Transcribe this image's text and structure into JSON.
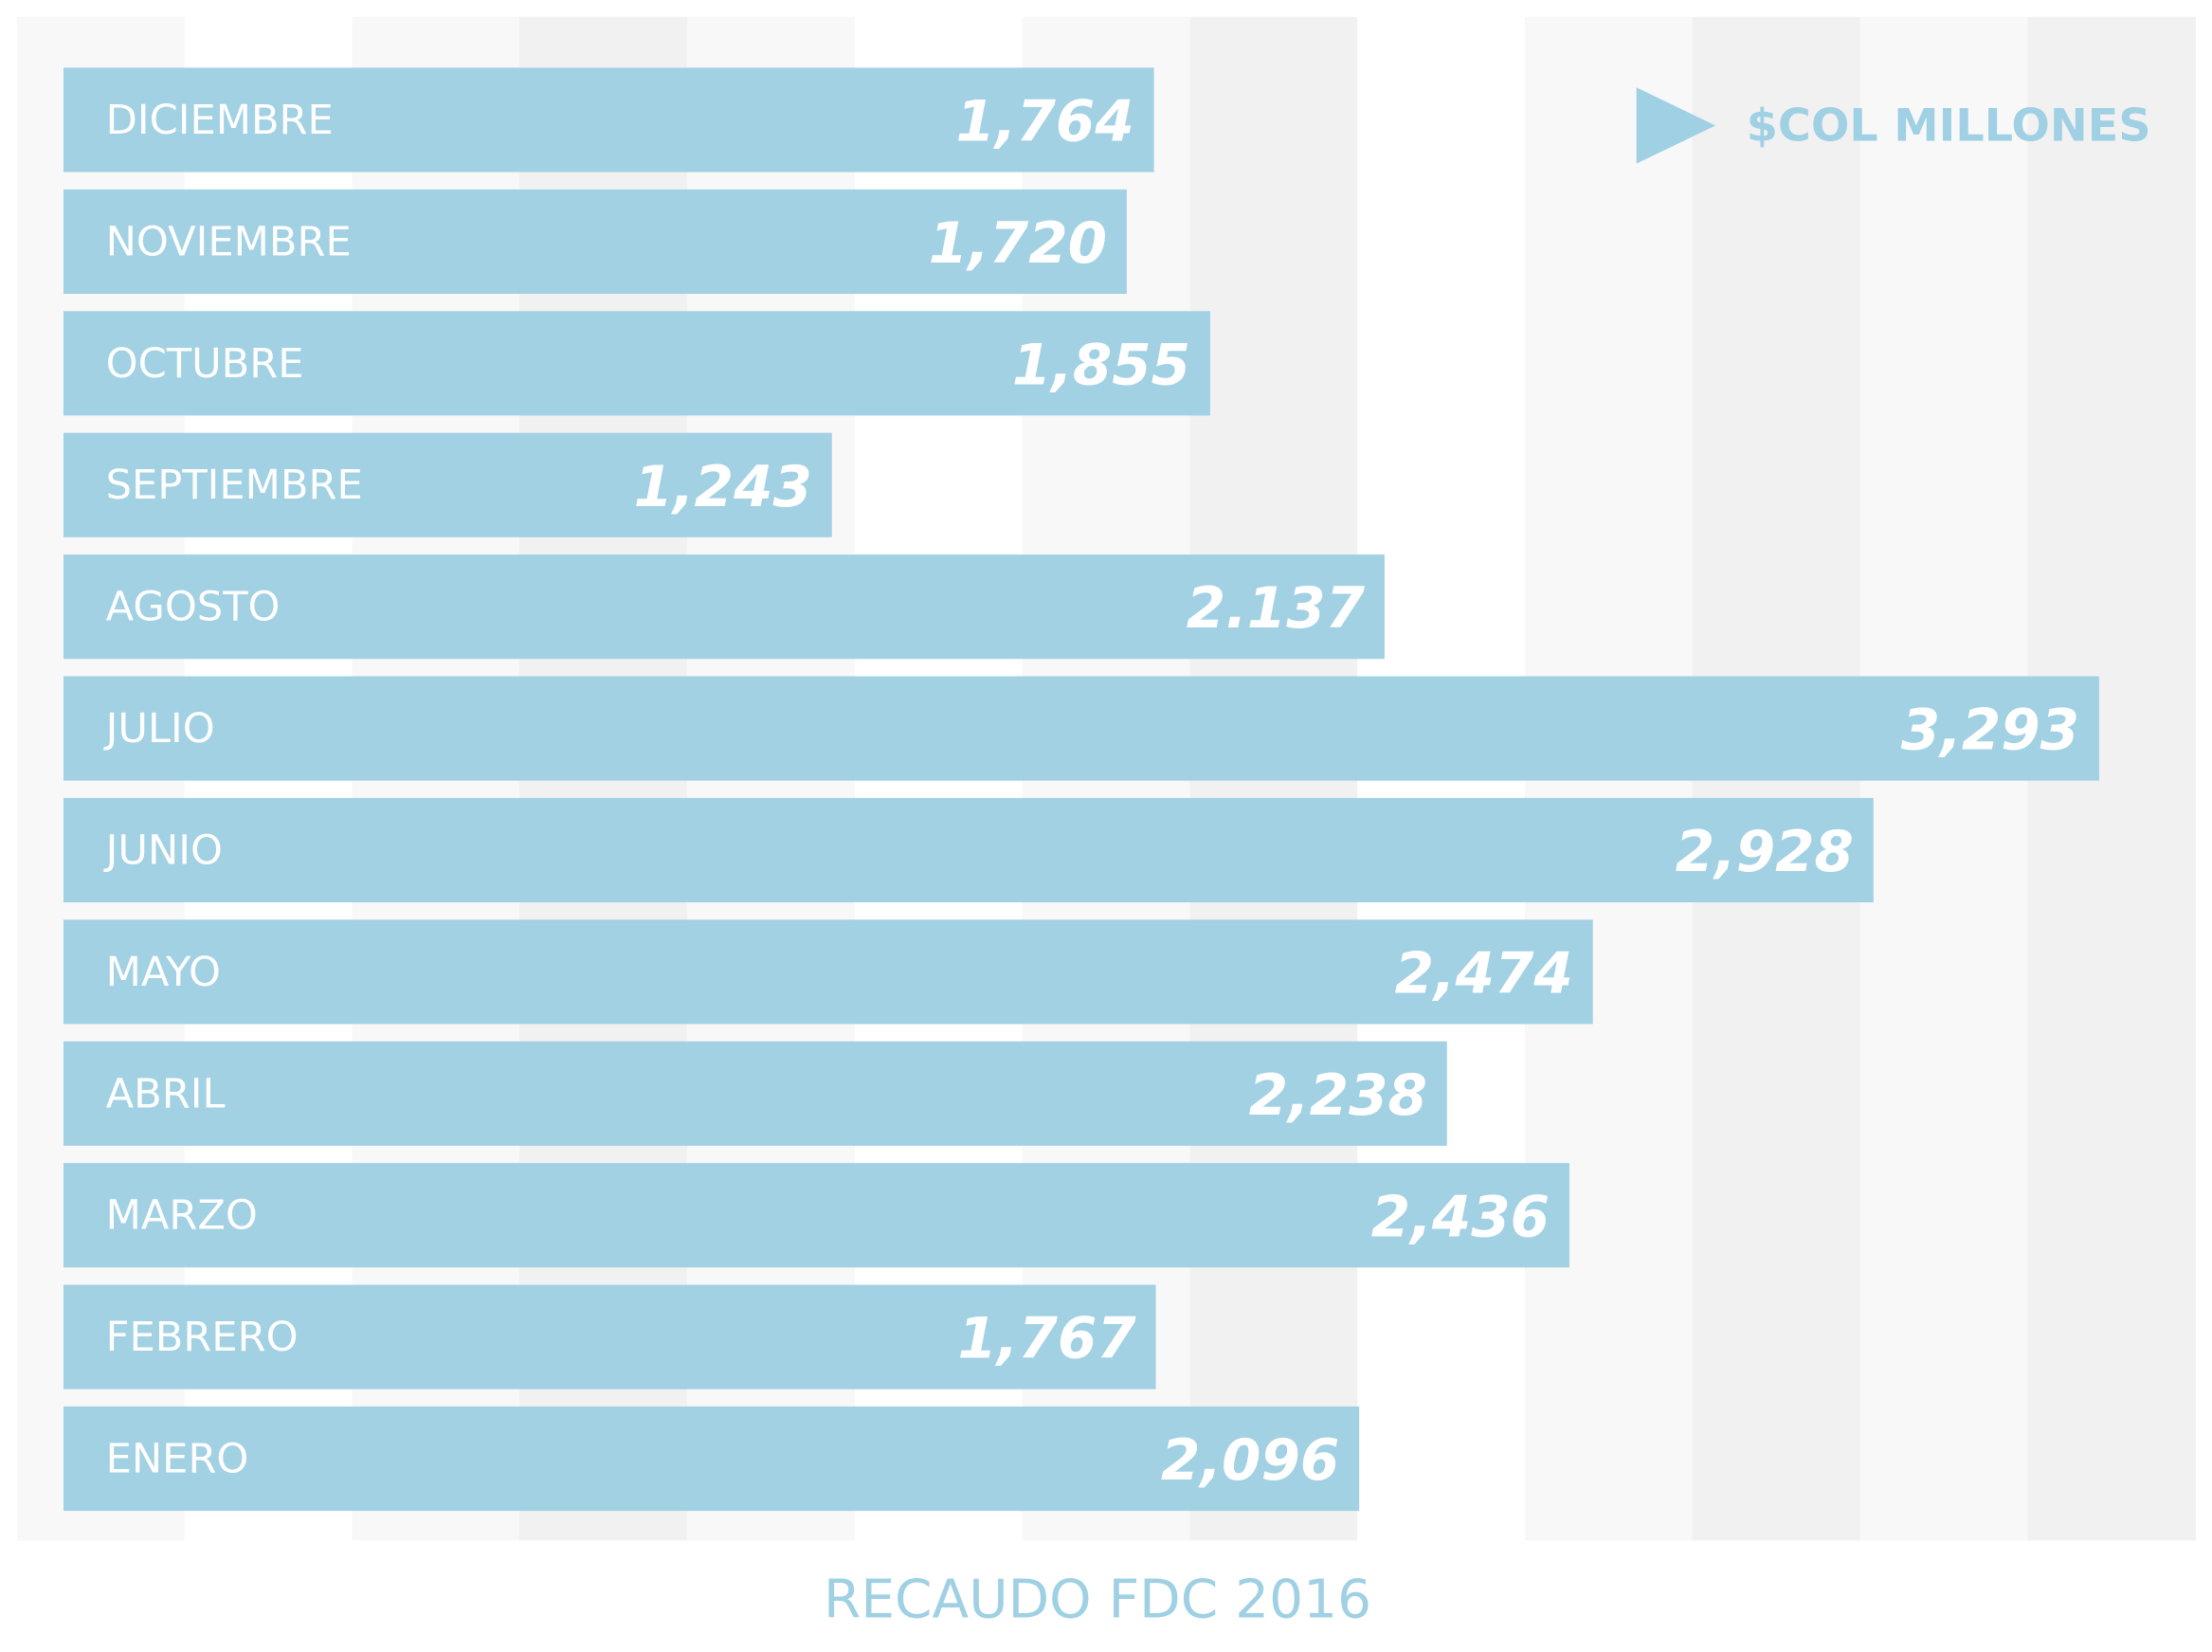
{
  "chart_data": {
    "type": "bar",
    "orientation": "horizontal",
    "title": "RECAUDO FDC 2016",
    "legend": "$COL MILLONES",
    "legend_position": "top-right",
    "color": "#a2d1e4",
    "categories": [
      "DICIEMBRE",
      "NOVIEMBRE",
      "OCTUBRE",
      "SEPTIEMBRE",
      "AGOSTO",
      "JULIO",
      "JUNIO",
      "MAYO",
      "ABRIL",
      "MARZO",
      "FEBRERO",
      "ENERO"
    ],
    "values": [
      1764,
      1720,
      1855,
      1243,
      2137,
      3293,
      2928,
      2474,
      2238,
      2436,
      1767,
      2096
    ],
    "value_labels": [
      "1,764",
      "1,720",
      "1,855",
      "1,243",
      "2.137",
      "3,293",
      "2,928",
      "2,474",
      "2,238",
      "2,436",
      "1,767",
      "2,096"
    ]
  }
}
